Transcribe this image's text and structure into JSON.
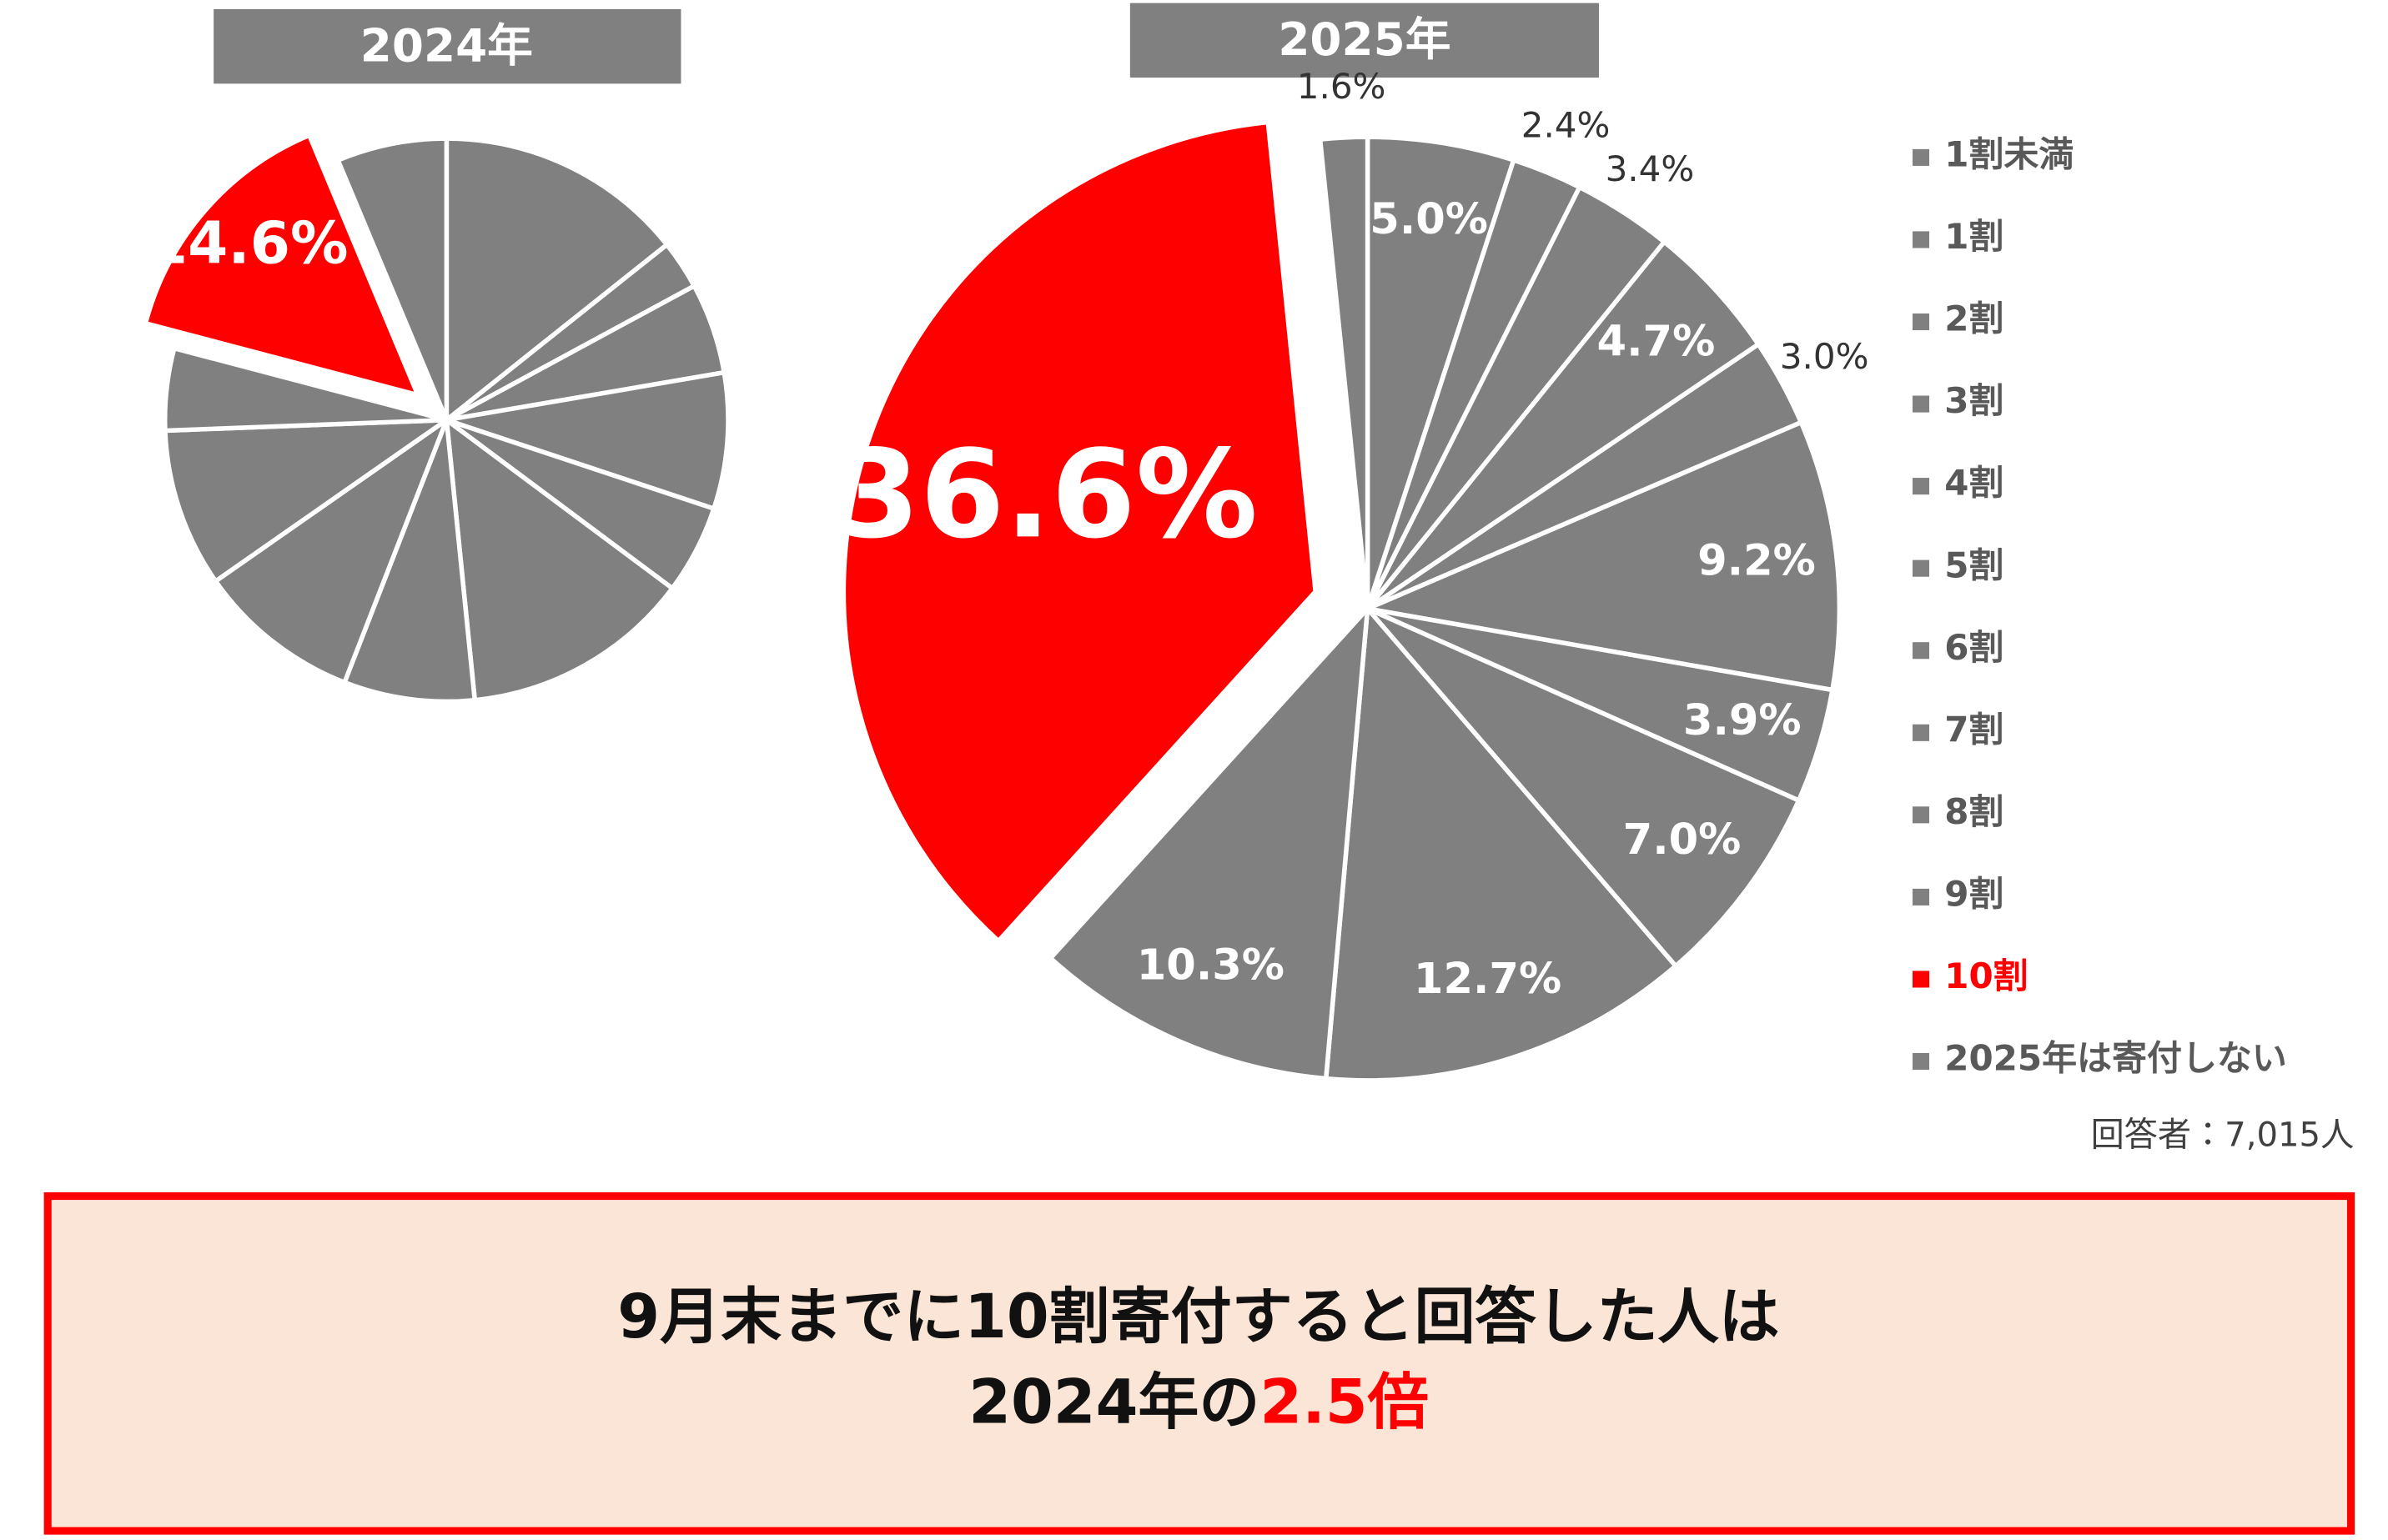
{
  "chart_data": [
    {
      "type": "pie",
      "title": "2024年",
      "values": [
        14.3,
        2.8,
        5.2,
        7.8,
        5.1,
        13.2,
        7.5,
        9.4,
        9.1,
        4.7,
        14.6,
        6.3
      ],
      "value_labels": [
        null,
        null,
        null,
        null,
        null,
        null,
        null,
        null,
        null,
        null,
        "14.6%",
        null
      ],
      "colors": [
        "#808080",
        "#808080",
        "#808080",
        "#808080",
        "#808080",
        "#808080",
        "#808080",
        "#808080",
        "#808080",
        "#808080",
        "#ff0000",
        "#808080"
      ],
      "exploded": [
        10
      ]
    },
    {
      "type": "pie",
      "title": "2025年",
      "categories": [
        "1割未満",
        "1割",
        "2割",
        "3割",
        "4割",
        "5割",
        "6割",
        "7割",
        "8割",
        "9割",
        "10割",
        "2025年は寄付しない"
      ],
      "values": [
        5.0,
        2.4,
        3.4,
        4.7,
        3.0,
        9.2,
        3.9,
        7.0,
        12.7,
        10.3,
        36.6,
        1.6
      ],
      "value_labels": [
        "5.0%",
        "2.4%",
        "3.4%",
        "4.7%",
        "3.0%",
        "9.2%",
        "3.9%",
        "7.0%",
        "12.7%",
        "10.3%",
        "36.6%",
        "1.6%"
      ],
      "colors": [
        "#808080",
        "#808080",
        "#808080",
        "#808080",
        "#808080",
        "#808080",
        "#808080",
        "#808080",
        "#808080",
        "#808080",
        "#ff0000",
        "#808080"
      ],
      "exploded": [
        10
      ],
      "legend": "right"
    }
  ],
  "note": "回答者：7,015人",
  "callout": {
    "line1": "9月末までに10割寄付すると回答した人は",
    "line2": "2024年の",
    "highlight": "2.5倍"
  }
}
